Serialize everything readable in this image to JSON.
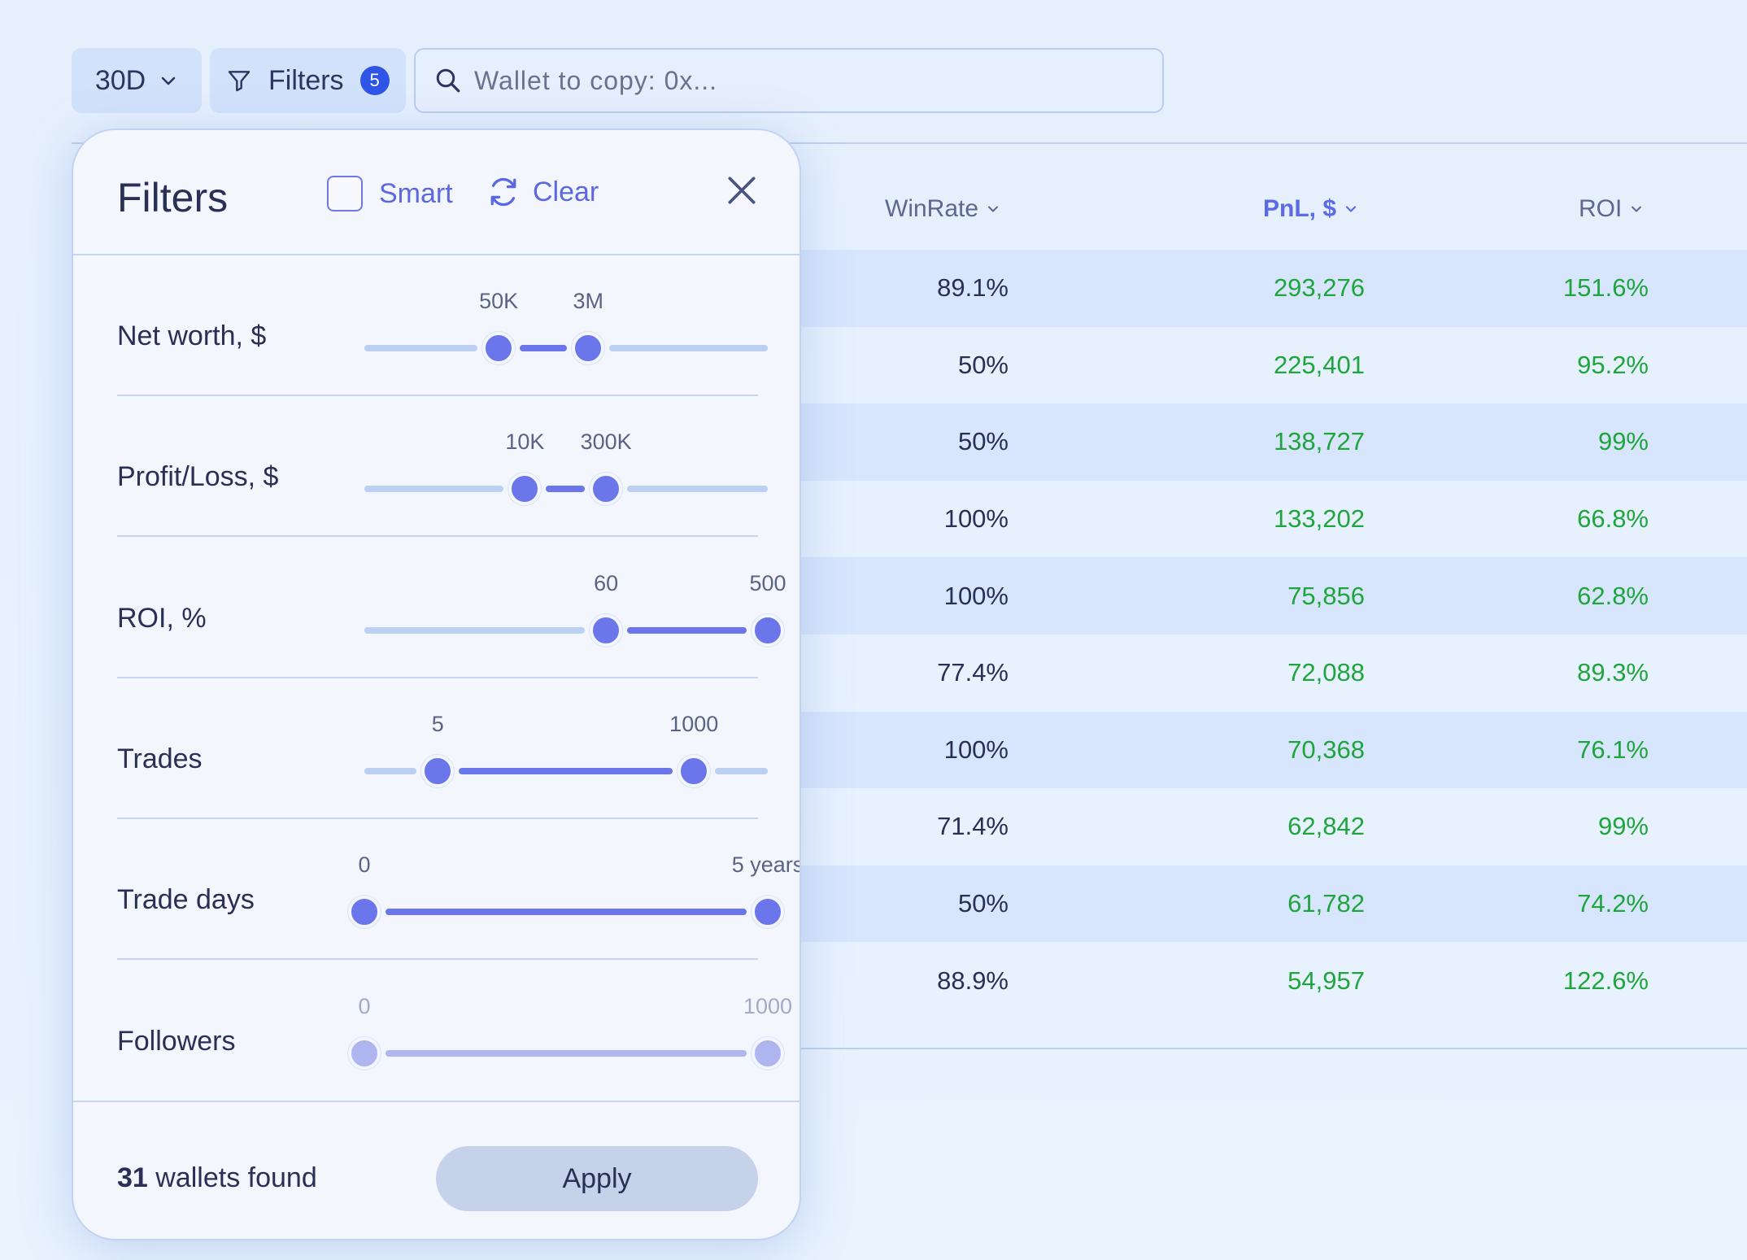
{
  "toolbar": {
    "period": "30D",
    "filters_label": "Filters",
    "filters_count": "5",
    "search_placeholder": "Wallet to copy: 0x..."
  },
  "table": {
    "headers": [
      {
        "label": "WinRate"
      },
      {
        "label": "PnL, $"
      },
      {
        "label": "ROI"
      }
    ],
    "rows": [
      {
        "winrate": "89.1%",
        "pnl": "293,276",
        "roi": "151.6%"
      },
      {
        "winrate": "50%",
        "pnl": "225,401",
        "roi": "95.2%"
      },
      {
        "winrate": "50%",
        "pnl": "138,727",
        "roi": "99%"
      },
      {
        "winrate": "100%",
        "pnl": "133,202",
        "roi": "66.8%"
      },
      {
        "winrate": "100%",
        "pnl": "75,856",
        "roi": "62.8%"
      },
      {
        "winrate": "77.4%",
        "pnl": "72,088",
        "roi": "89.3%"
      },
      {
        "winrate": "100%",
        "pnl": "70,368",
        "roi": "76.1%"
      },
      {
        "winrate": "71.4%",
        "pnl": "62,842",
        "roi": "99%"
      },
      {
        "winrate": "50%",
        "pnl": "61,782",
        "roi": "74.2%"
      },
      {
        "winrate": "88.9%",
        "pnl": "54,957",
        "roi": "122.6%"
      }
    ]
  },
  "panel": {
    "title": "Filters",
    "smart_label": "Smart",
    "clear_label": "Clear",
    "filters": [
      {
        "label": "Net worth, $",
        "min_label": "50K",
        "max_label": "3M",
        "min_frac": 0.333,
        "max_frac": 0.555,
        "enabled": true
      },
      {
        "label": "Profit/Loss, $",
        "min_label": "10K",
        "max_label": "300K",
        "min_frac": 0.398,
        "max_frac": 0.599,
        "enabled": true
      },
      {
        "label": "ROI, %",
        "min_label": "60",
        "max_label": "500",
        "min_frac": 0.599,
        "max_frac": 1.0,
        "enabled": true
      },
      {
        "label": "Trades",
        "min_label": "5",
        "max_label": "1000",
        "min_frac": 0.182,
        "max_frac": 0.817,
        "enabled": true
      },
      {
        "label": "Trade days",
        "min_label": "0",
        "max_label": "5 years",
        "min_frac": 0.0,
        "max_frac": 1.0,
        "enabled": true
      },
      {
        "label": "Followers",
        "min_label": "0",
        "max_label": "1000",
        "min_frac": 0.0,
        "max_frac": 1.0,
        "enabled": false
      }
    ],
    "found_count": "31",
    "found_text": "wallets found",
    "apply_label": "Apply"
  }
}
